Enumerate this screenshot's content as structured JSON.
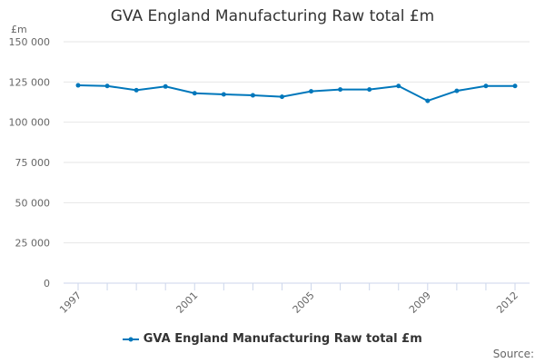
{
  "chart_data": {
    "type": "line",
    "title": "GVA England Manufacturing Raw total £m",
    "ylabel": "£m",
    "xlabel": "",
    "x": [
      1997,
      1998,
      1999,
      2000,
      2001,
      2002,
      2003,
      2004,
      2005,
      2006,
      2007,
      2008,
      2009,
      2010,
      2011,
      2012
    ],
    "x_tick_labels": [
      "1997",
      "2001",
      "2005",
      "2009",
      "2012"
    ],
    "y_tick_labels": [
      "0",
      "25 000",
      "50 000",
      "75 000",
      "100 000",
      "125 000",
      "150 000"
    ],
    "ylim": [
      0,
      150000
    ],
    "grid": true,
    "series": [
      {
        "name": "GVA England Manufacturing Raw total £m",
        "color": "#0077bb",
        "values": [
          122900,
          122500,
          119900,
          122200,
          118000,
          117300,
          116700,
          115800,
          119200,
          120300,
          120300,
          122500,
          113300,
          119500,
          122500,
          122500
        ]
      }
    ],
    "legend": "bottom",
    "source": "Source:"
  }
}
